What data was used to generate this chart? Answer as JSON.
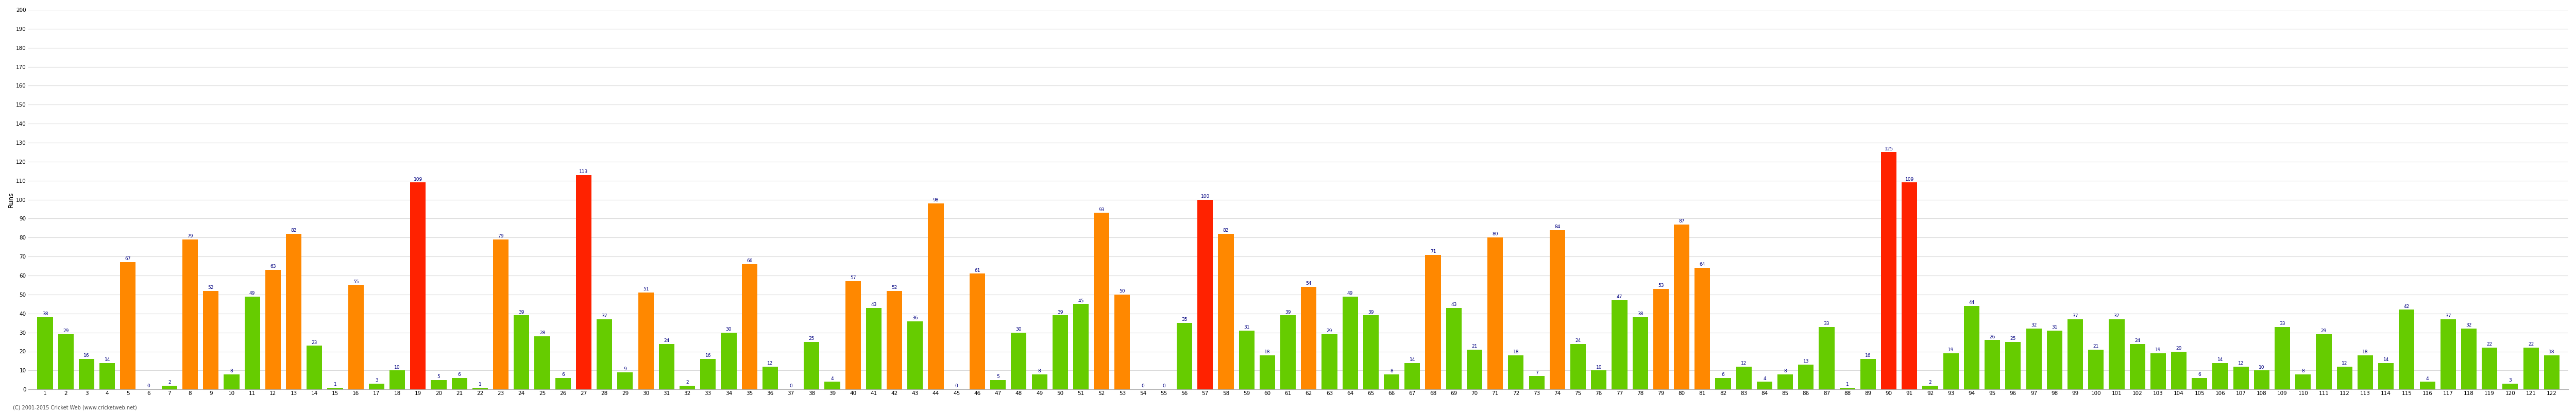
{
  "ylabel": "Runs",
  "footer": "(C) 2001-2015 Cricket Web (www.cricketweb.net)",
  "innings": [
    1,
    2,
    3,
    4,
    5,
    6,
    7,
    8,
    9,
    10,
    11,
    12,
    13,
    14,
    15,
    16,
    17,
    18,
    19,
    20,
    21,
    22,
    23,
    24,
    25,
    26,
    27,
    28,
    29,
    30,
    31,
    32,
    33,
    34,
    35,
    36,
    37,
    38,
    39,
    40,
    41,
    42,
    43,
    44,
    45,
    46,
    47,
    48,
    49,
    50,
    51,
    52,
    53,
    54,
    55,
    56,
    57,
    58,
    59,
    60,
    61,
    62,
    63,
    64,
    65,
    66,
    67,
    68,
    69,
    70,
    71,
    72,
    73,
    74,
    75,
    76,
    77,
    78,
    79,
    80,
    81,
    82,
    83,
    84,
    85,
    86,
    87,
    88,
    89,
    90,
    91,
    92,
    93,
    94,
    95,
    96,
    97,
    98,
    99,
    100,
    101,
    102,
    103,
    104,
    105,
    106,
    107,
    108,
    109,
    110,
    111,
    112,
    113,
    114,
    115,
    116,
    117,
    118,
    119,
    120,
    121,
    122
  ],
  "values": [
    38,
    29,
    16,
    14,
    67,
    0,
    2,
    79,
    52,
    8,
    49,
    63,
    82,
    23,
    1,
    55,
    3,
    10,
    109,
    5,
    6,
    1,
    79,
    39,
    28,
    6,
    113,
    37,
    9,
    51,
    24,
    2,
    16,
    30,
    66,
    12,
    0,
    25,
    4,
    57,
    43,
    52,
    36,
    98,
    0,
    61,
    5,
    30,
    8,
    39,
    45,
    93,
    50,
    0,
    0,
    35,
    100,
    82,
    31,
    18,
    39,
    54,
    29,
    49,
    39,
    8,
    14,
    71,
    43,
    21,
    80,
    18,
    7,
    84,
    24,
    10,
    47,
    38,
    53,
    87,
    64,
    6,
    12,
    4,
    8,
    13,
    33,
    1,
    16,
    125,
    109,
    2,
    19,
    44,
    26,
    25,
    32,
    31,
    37,
    21,
    37,
    24,
    19,
    20,
    6,
    14,
    12,
    10,
    33,
    8,
    29,
    12,
    18,
    14,
    42,
    4,
    37,
    32,
    22,
    3,
    22,
    18
  ],
  "bg_color": "#ffffff",
  "grid_color": "#d8d8d8",
  "label_color": "#000080",
  "label_fontsize": 6.5,
  "tick_fontsize": 7.5,
  "bar_width": 0.75,
  "ylim": [
    0,
    200
  ],
  "yticks": [
    0,
    10,
    20,
    30,
    40,
    50,
    60,
    70,
    80,
    90,
    100,
    110,
    120,
    130,
    140,
    150,
    160,
    170,
    180,
    190,
    200
  ]
}
